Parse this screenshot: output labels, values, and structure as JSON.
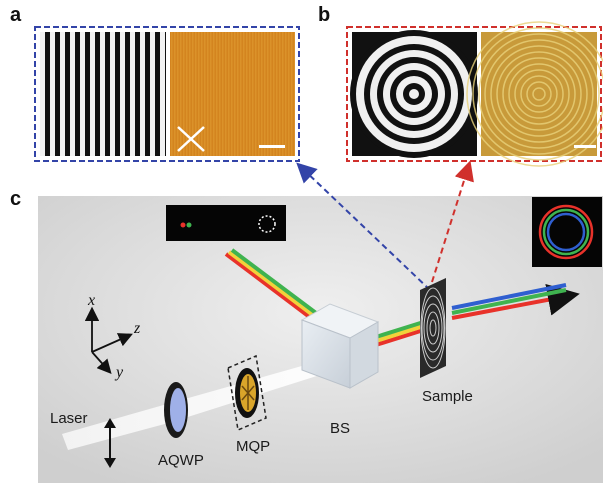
{
  "panels": {
    "a": "a",
    "b": "b",
    "c": "c"
  },
  "labels": {
    "laser": "Laser",
    "aqwp": "AQWP",
    "mqp": "MQP",
    "bs": "BS",
    "sample": "Sample"
  },
  "axes": {
    "x": "x",
    "y": "y",
    "z": "z"
  },
  "colors": {
    "panel_a_border": "#3344a8",
    "panel_b_border": "#d0302c",
    "scene_background": "#dcdcdc",
    "orange_film": "#d98a22",
    "beam_red": "#e8322a",
    "beam_green": "#3fb34f",
    "beam_blue": "#2f5fd0",
    "beam_yellow": "#f2d23a"
  }
}
